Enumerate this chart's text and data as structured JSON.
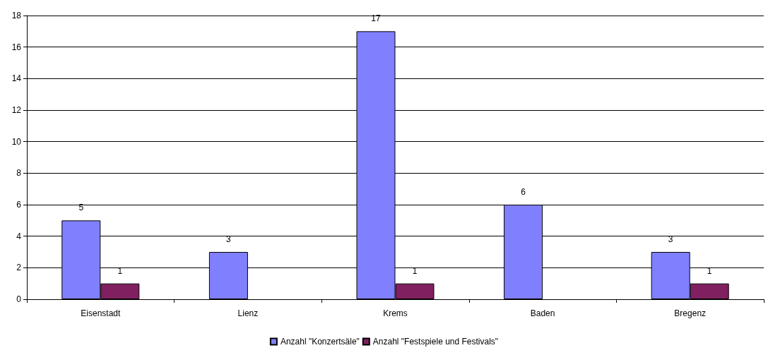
{
  "chart_data": {
    "type": "bar",
    "categories": [
      "Eisenstadt",
      "Lienz",
      "Krems",
      "Baden",
      "Bregenz"
    ],
    "series": [
      {
        "name": "Anzahl \"Konzertsäle\"",
        "color": "#8080ff",
        "values": [
          5,
          3,
          17,
          6,
          3
        ]
      },
      {
        "name": "Anzahl \"Festspiele und Festivals\"",
        "color": "#802060",
        "values": [
          1,
          null,
          1,
          null,
          1
        ]
      }
    ],
    "ylim": [
      0,
      18
    ],
    "yticks": [
      0,
      2,
      4,
      6,
      8,
      10,
      12,
      14,
      16,
      18
    ],
    "grid": "y",
    "legend": "bottom",
    "data_labels": true
  }
}
